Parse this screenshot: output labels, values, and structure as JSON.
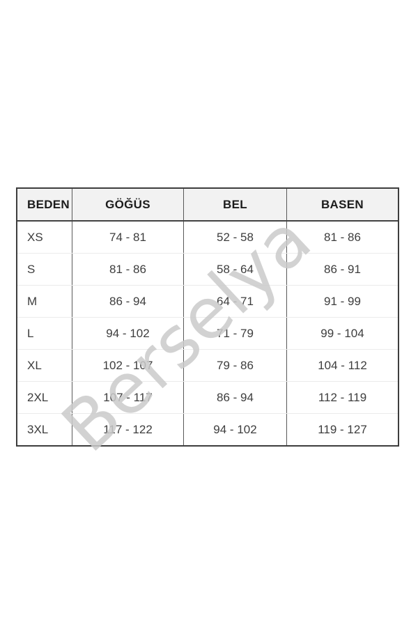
{
  "watermark": {
    "text": "Berselya",
    "color": "#cacaca"
  },
  "colors": {
    "header_bg": "#f2f2f2",
    "outer_border": "#3d3d3d",
    "inner_border": "#585858",
    "row_divider": "#ebebeb",
    "header_text": "#1c1c1c",
    "body_text": "#3d3d3d",
    "page_bg": "#ffffff"
  },
  "chart_data": {
    "type": "table",
    "title": "",
    "columns": [
      "BEDEN",
      "GÖĞÜS",
      "BEL",
      "BASEN"
    ],
    "rows": [
      [
        "XS",
        "74 - 81",
        "52 - 58",
        "81 - 86"
      ],
      [
        "S",
        "81 - 86",
        "58 - 64",
        "86 - 91"
      ],
      [
        "M",
        "86 - 94",
        "64 - 71",
        "91 - 99"
      ],
      [
        "L",
        "94 - 102",
        "71 - 79",
        "99 - 104"
      ],
      [
        "XL",
        "102 - 107",
        "79 - 86",
        "104 - 112"
      ],
      [
        "2XL",
        "107 - 117",
        "86 - 94",
        "112 - 119"
      ],
      [
        "3XL",
        "117 - 122",
        "94 - 102",
        "119 - 127"
      ]
    ]
  }
}
